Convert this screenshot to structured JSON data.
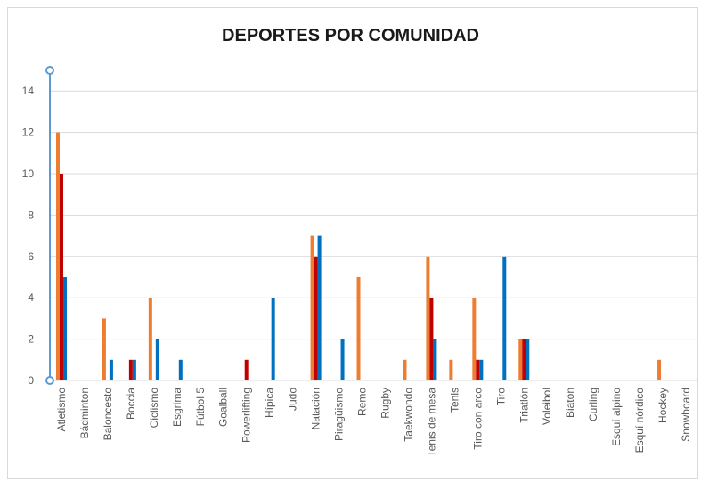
{
  "chart_data": {
    "type": "bar",
    "title": "DEPORTES POR COMUNIDAD",
    "xlabel": "",
    "ylabel": "",
    "ylim": [
      0,
      15
    ],
    "yticks": [
      0,
      2,
      4,
      6,
      8,
      10,
      12,
      14
    ],
    "grid": true,
    "legend": "none",
    "categories": [
      "Atletismo",
      "Bádminton",
      "Baloncesto",
      "Boccia",
      "Ciclismo",
      "Esgrima",
      "Fútbol 5",
      "Goalball",
      "Powerlifting",
      "Hípica",
      "Judo",
      "Natación",
      "Piragüismo",
      "Remo",
      "Rugby",
      "Taekwondo",
      "Tenis de mesa",
      "Tenis",
      "Tiro con arco",
      "Tiro",
      "Triatlón",
      "Voleibol",
      "Biatón",
      "Curling",
      "Esquí alpino",
      "Esquí nórdico",
      "Hockey",
      "Snowboard"
    ],
    "series": [
      {
        "color": "#ED7D31",
        "values": [
          12,
          0,
          3,
          0,
          4,
          0,
          0,
          0,
          0,
          0,
          0,
          7,
          0,
          5,
          0,
          1,
          6,
          1,
          4,
          0,
          2,
          0,
          0,
          0,
          0,
          0,
          1,
          0
        ]
      },
      {
        "color": "#C00000",
        "values": [
          10,
          0,
          0,
          1,
          0,
          0,
          0,
          0,
          1,
          0,
          0,
          6,
          0,
          0,
          0,
          0,
          4,
          0,
          1,
          0,
          2,
          0,
          0,
          0,
          0,
          0,
          0,
          0
        ]
      },
      {
        "color": "#0070C0",
        "values": [
          5,
          0,
          1,
          1,
          2,
          1,
          0,
          0,
          0,
          4,
          0,
          7,
          2,
          0,
          0,
          0,
          2,
          0,
          1,
          6,
          2,
          0,
          0,
          0,
          0,
          0,
          0,
          0
        ]
      }
    ]
  },
  "colors": {
    "grid": "#d9d9d9",
    "axis": "#5b9bd5"
  }
}
